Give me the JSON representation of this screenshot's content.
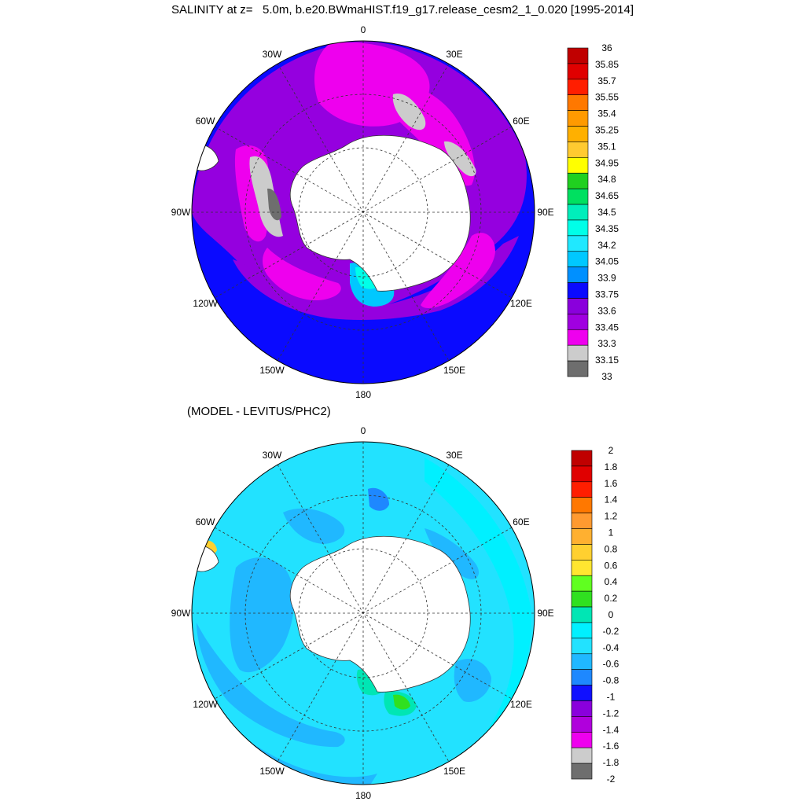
{
  "title": "SALINITY at z=   5.0m, b.e20.BWmaHIST.f19_g17.release_cesm2_1_0.020 [1995-2014]",
  "bottom_title": "(MODEL - LEVITUS/PHC2)",
  "longitude_labels": [
    "0",
    "30E",
    "60E",
    "90E",
    "120E",
    "150E",
    "180",
    "150W",
    "120W",
    "90W",
    "60W",
    "30W"
  ],
  "top_colorbar": {
    "labels": [
      "36",
      "35.85",
      "35.7",
      "35.55",
      "35.4",
      "35.25",
      "35.1",
      "34.95",
      "34.8",
      "34.65",
      "34.5",
      "34.35",
      "34.2",
      "34.05",
      "33.9",
      "33.75",
      "33.6",
      "33.45",
      "33.3",
      "33.15",
      "33"
    ],
    "colors": [
      "#c00000",
      "#e00000",
      "#ff1e00",
      "#ff7800",
      "#ff9a00",
      "#ffb000",
      "#ffca30",
      "#ffff00",
      "#20d020",
      "#00e060",
      "#00eebb",
      "#00ffe8",
      "#20e8ff",
      "#00c8ff",
      "#0090ff",
      "#0a0aff",
      "#8a00dc",
      "#a000e0",
      "#ee00ee",
      "#cccccc",
      "#6e6e6e"
    ]
  },
  "bottom_colorbar": {
    "labels": [
      "2",
      "1.8",
      "1.6",
      "1.4",
      "1.2",
      "1",
      "0.8",
      "0.6",
      "0.4",
      "0.2",
      "0",
      "-0.2",
      "-0.4",
      "-0.6",
      "-0.8",
      "-1",
      "-1.2",
      "-1.4",
      "-1.6",
      "-1.8",
      "-2"
    ],
    "colors": [
      "#c00000",
      "#e00000",
      "#ff1e00",
      "#ff7800",
      "#ff9a30",
      "#ffb030",
      "#ffd030",
      "#ffe630",
      "#60ff20",
      "#30e020",
      "#00e6b4",
      "#00f0ff",
      "#22e2ff",
      "#20b8ff",
      "#1e88ff",
      "#1010ff",
      "#8a00dc",
      "#b000dc",
      "#ee00ee",
      "#cccccc",
      "#6e6e6e"
    ]
  }
}
